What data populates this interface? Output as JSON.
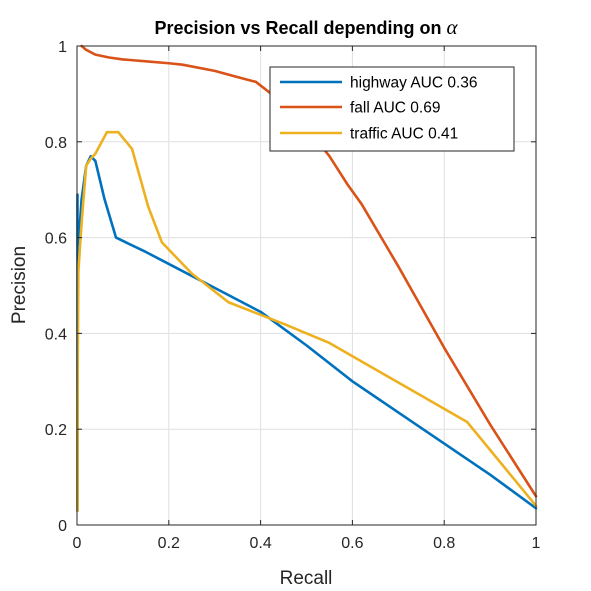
{
  "chart_data": {
    "type": "line",
    "title": "Precision vs Recall depending on",
    "title_symbol": "α",
    "xlabel": "Recall",
    "ylabel": "Precision",
    "xlim": [
      0,
      1
    ],
    "ylim": [
      0,
      1
    ],
    "xticks": [
      0,
      0.2,
      0.4,
      0.6,
      0.8,
      1
    ],
    "yticks": [
      0,
      0.2,
      0.4,
      0.6,
      0.8,
      1
    ],
    "xtick_labels": [
      "0",
      "0.2",
      "0.4",
      "0.6",
      "0.8",
      "1"
    ],
    "ytick_labels": [
      "0",
      "0.2",
      "0.4",
      "0.6",
      "0.8",
      "1"
    ],
    "grid": true,
    "legend_position": "top-right",
    "series": [
      {
        "name": "highway AUC 0.36",
        "color": "#0072BD",
        "x": [
          0.001,
          0.001,
          0.001,
          0.003,
          0.01,
          0.02,
          0.03,
          0.04,
          0.06,
          0.085,
          0.15,
          0.2,
          0.3,
          0.4,
          0.5,
          0.6,
          0.7,
          0.8,
          0.9,
          1.0
        ],
        "y": [
          0.03,
          0.69,
          0.62,
          0.585,
          0.68,
          0.75,
          0.77,
          0.76,
          0.68,
          0.6,
          0.57,
          0.545,
          0.495,
          0.445,
          0.375,
          0.3,
          0.235,
          0.17,
          0.105,
          0.035
        ]
      },
      {
        "name": "fall AUC 0.69",
        "color": "#D95319",
        "x": [
          0.01,
          0.02,
          0.04,
          0.07,
          0.1,
          0.15,
          0.2,
          0.23,
          0.3,
          0.35,
          0.39,
          0.45,
          0.5,
          0.55,
          0.59,
          0.62,
          0.7,
          0.8,
          0.9,
          1.0
        ],
        "y": [
          1.0,
          0.992,
          0.982,
          0.976,
          0.972,
          0.968,
          0.964,
          0.961,
          0.948,
          0.935,
          0.925,
          0.88,
          0.83,
          0.77,
          0.71,
          0.67,
          0.54,
          0.37,
          0.21,
          0.06
        ]
      },
      {
        "name": "traffic AUC 0.41",
        "color": "#EDB120",
        "x": [
          0.001,
          0.001,
          0.003,
          0.01,
          0.02,
          0.03,
          0.04,
          0.065,
          0.09,
          0.12,
          0.155,
          0.185,
          0.25,
          0.33,
          0.45,
          0.55,
          0.65,
          0.75,
          0.85,
          1.0
        ],
        "y": [
          0.03,
          0.25,
          0.53,
          0.63,
          0.75,
          0.765,
          0.775,
          0.82,
          0.82,
          0.785,
          0.665,
          0.59,
          0.525,
          0.465,
          0.42,
          0.38,
          0.325,
          0.27,
          0.215,
          0.04
        ]
      }
    ]
  }
}
